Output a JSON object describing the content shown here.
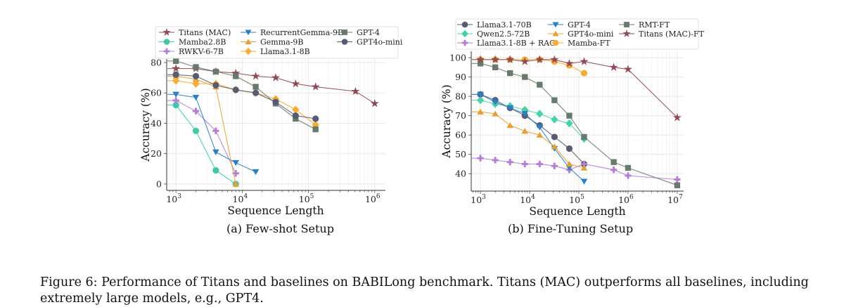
{
  "figure_caption": "Figure 6: Performance of Titans and baselines on BABILong benchmark. Titans (MAC) outperforms all baselines, including extremely large models, e.g., GPT4.",
  "chart_data": [
    {
      "type": "line",
      "subcaption": "(a) Few-shot Setup",
      "xlabel": "Sequence Length",
      "ylabel": "Accuracy (%)",
      "xscale": "log",
      "xlim": [
        725,
        1450000
      ],
      "ylim": [
        -4.2,
        82.3
      ],
      "xtick_exponents": [
        3,
        4,
        5,
        6
      ],
      "yticks": [
        0,
        20,
        40,
        60,
        80
      ],
      "grid": true,
      "legend_position": "top",
      "series": [
        {
          "name": "Titans (MAC)",
          "color": "#8f4b55",
          "marker": "star",
          "x": [
            1000,
            2000,
            4000,
            8000,
            16000,
            32000,
            64000,
            128000,
            512000,
            1000000
          ],
          "y": [
            76,
            76,
            74,
            73,
            71,
            70,
            66,
            64,
            61,
            53
          ]
        },
        {
          "name": "Mamba2.8B",
          "color": "#3fc9a6",
          "marker": "circle",
          "x": [
            1000,
            2000,
            4000,
            8000
          ],
          "y": [
            52,
            35,
            9,
            0
          ]
        },
        {
          "name": "RWKV-6-7B",
          "color": "#b47fd2",
          "marker": "plus",
          "x": [
            1000,
            2000,
            4000,
            8000
          ],
          "y": [
            55,
            48,
            35,
            7
          ]
        },
        {
          "name": "RecurrentGemma-9B",
          "color": "#2e7fbf",
          "marker": "tri-down",
          "x": [
            1000,
            2000,
            4000,
            8000,
            16000
          ],
          "y": [
            59,
            57,
            21,
            14,
            8
          ]
        },
        {
          "name": "Gemma-9B",
          "color": "#e3a038",
          "marker": "tri-up",
          "x": [
            1000,
            2000,
            4000,
            8000
          ],
          "y": [
            71,
            69,
            64,
            0
          ]
        },
        {
          "name": "Llama3.1-8B",
          "color": "#f6ad35",
          "marker": "diamond",
          "x": [
            1000,
            2000,
            4000,
            8000,
            16000,
            32000,
            64000,
            128000
          ],
          "y": [
            68,
            66,
            66,
            62,
            60,
            56,
            49,
            39
          ]
        },
        {
          "name": "GPT-4",
          "color": "#687a6b",
          "marker": "square",
          "x": [
            1000,
            2000,
            4000,
            8000,
            16000,
            32000,
            64000,
            128000
          ],
          "y": [
            81,
            77,
            74,
            71,
            64,
            53,
            43,
            36
          ]
        },
        {
          "name": "GPT4o-mini",
          "color": "#585b74",
          "marker": "circle",
          "x": [
            1000,
            2000,
            4000,
            8000,
            16000,
            32000,
            64000,
            128000
          ],
          "y": [
            72,
            71,
            65,
            62,
            60,
            54,
            45,
            43
          ]
        }
      ]
    },
    {
      "type": "line",
      "subcaption": "(b) Fine-Tuning Setup",
      "xlabel": "Sequence Length",
      "ylabel": "Accuracy (%)",
      "xscale": "log",
      "xlim": [
        650,
        13500000
      ],
      "ylim": [
        31,
        103.3
      ],
      "xtick_exponents": [
        3,
        4,
        5,
        6,
        7
      ],
      "yticks": [
        40,
        50,
        60,
        70,
        80,
        90,
        100
      ],
      "grid": true,
      "legend_position": "top",
      "series": [
        {
          "name": "Llama3.1-70B",
          "color": "#585b74",
          "marker": "circle",
          "x": [
            1000,
            2000,
            4000,
            8000,
            16000,
            32000,
            64000,
            128000
          ],
          "y": [
            81,
            78,
            74,
            70,
            65,
            59,
            53,
            45
          ]
        },
        {
          "name": "Qwen2.5-72B",
          "color": "#48d1a8",
          "marker": "diamond",
          "x": [
            1000,
            2000,
            4000,
            8000,
            16000,
            32000,
            64000,
            128000
          ],
          "y": [
            78,
            76,
            75,
            73,
            71,
            68,
            66,
            58
          ]
        },
        {
          "name": "Llama3.1-8B + RAG",
          "color": "#b47fd2",
          "marker": "plus",
          "x": [
            1000,
            2000,
            4000,
            8000,
            16000,
            32000,
            64000,
            128000,
            512000,
            1000000,
            10000000
          ],
          "y": [
            48,
            47,
            46,
            45,
            45,
            44,
            42,
            45,
            42,
            39,
            37
          ]
        },
        {
          "name": "GPT-4",
          "color": "#2e7fbf",
          "marker": "tri-down",
          "x": [
            1000,
            2000,
            4000,
            8000,
            16000,
            32000,
            64000,
            128000
          ],
          "y": [
            81,
            77,
            74,
            71,
            64,
            53,
            43,
            36
          ]
        },
        {
          "name": "GPT4o-mini",
          "color": "#e3a038",
          "marker": "tri-up",
          "x": [
            1000,
            2000,
            4000,
            8000,
            16000,
            32000,
            64000,
            128000
          ],
          "y": [
            72,
            71,
            65,
            62,
            60,
            54,
            45,
            43
          ]
        },
        {
          "name": "Mamba-FT",
          "color": "#f6ad35",
          "marker": "circle",
          "x": [
            1000,
            2000,
            4000,
            8000,
            16000,
            32000,
            64000,
            128000
          ],
          "y": [
            99,
            99,
            99,
            99,
            99,
            98,
            96,
            92
          ]
        },
        {
          "name": "RMT-FT",
          "color": "#687a6b",
          "marker": "square",
          "x": [
            1000,
            2000,
            4000,
            8000,
            16000,
            32000,
            64000,
            128000,
            512000,
            1000000,
            10000000
          ],
          "y": [
            97,
            95,
            92,
            90,
            86,
            78,
            70,
            59,
            46,
            43,
            34
          ]
        },
        {
          "name": "Titans (MAC)-FT",
          "color": "#8f4b55",
          "marker": "star",
          "x": [
            1000,
            2000,
            4000,
            8000,
            16000,
            32000,
            64000,
            128000,
            512000,
            1000000,
            10000000
          ],
          "y": [
            99,
            99,
            99,
            98,
            99,
            99,
            97,
            98,
            95,
            94,
            69
          ]
        }
      ]
    }
  ]
}
